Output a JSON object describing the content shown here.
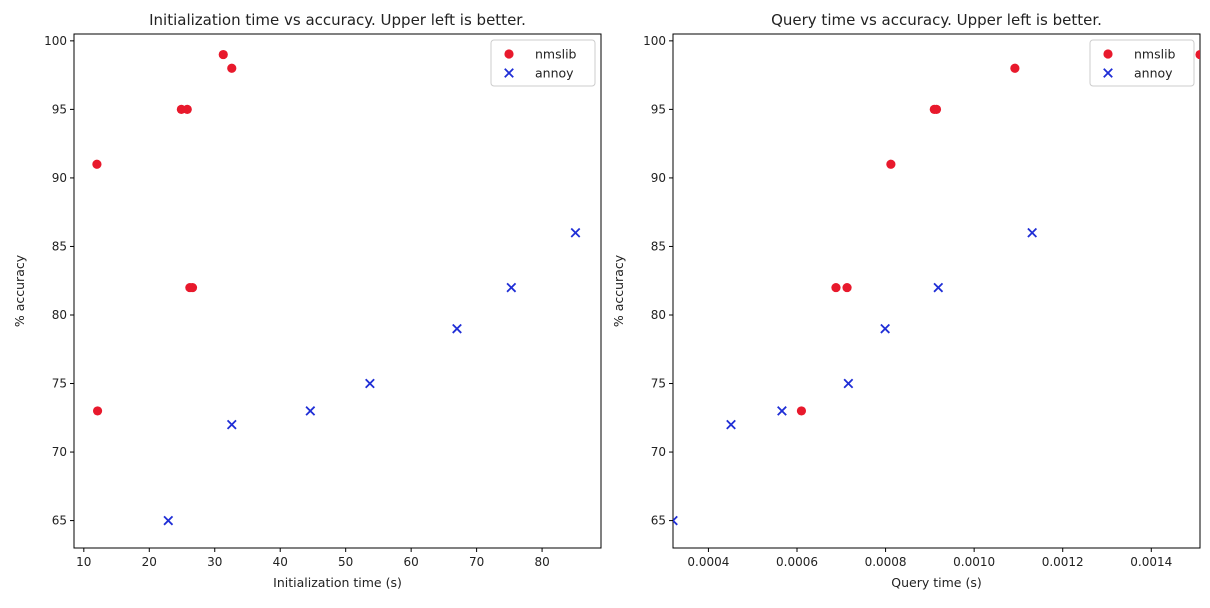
{
  "chart_data": [
    {
      "type": "scatter",
      "title": "Initialization time vs accuracy. Upper left is better.",
      "xlabel": "Initialization time (s)",
      "ylabel": "% accuracy",
      "xlim": [
        8.5,
        89
      ],
      "ylim": [
        63,
        100.5
      ],
      "xticks": [
        10,
        20,
        30,
        40,
        50,
        60,
        70,
        80
      ],
      "yticks": [
        65,
        70,
        75,
        80,
        85,
        90,
        95,
        100
      ],
      "xtick_labels": [
        "10",
        "20",
        "30",
        "40",
        "50",
        "60",
        "70",
        "80"
      ],
      "ytick_labels": [
        "65",
        "70",
        "75",
        "80",
        "85",
        "90",
        "95",
        "100"
      ],
      "legend": "top-right",
      "series": [
        {
          "name": "nmslib",
          "marker": "circle",
          "color": "#e8192c",
          "points": [
            [
              12.0,
              91
            ],
            [
              12.1,
              73
            ],
            [
              24.9,
              95
            ],
            [
              25.8,
              95
            ],
            [
              26.2,
              82
            ],
            [
              26.6,
              82
            ],
            [
              31.3,
              99
            ],
            [
              32.6,
              98
            ]
          ]
        },
        {
          "name": "annoy",
          "marker": "x",
          "color": "#1f2ed6",
          "points": [
            [
              22.9,
              65
            ],
            [
              32.6,
              72
            ],
            [
              44.6,
              73
            ],
            [
              53.7,
              75
            ],
            [
              67.0,
              79
            ],
            [
              75.3,
              82
            ],
            [
              85.1,
              86
            ]
          ]
        }
      ]
    },
    {
      "type": "scatter",
      "title": "Query time vs accuracy. Upper left is better.",
      "xlabel": "Query time (s)",
      "ylabel": "% accuracy",
      "xlim": [
        0.00032,
        0.00151
      ],
      "ylim": [
        63,
        100.5
      ],
      "xticks": [
        0.0004,
        0.0006,
        0.0008,
        0.001,
        0.0012,
        0.0014
      ],
      "yticks": [
        65,
        70,
        75,
        80,
        85,
        90,
        95,
        100
      ],
      "xtick_labels": [
        "0.0004",
        "0.0006",
        "0.0008",
        "0.0010",
        "0.0012",
        "0.0014"
      ],
      "ytick_labels": [
        "65",
        "70",
        "75",
        "80",
        "85",
        "90",
        "95",
        "100"
      ],
      "legend": "top-right",
      "series": [
        {
          "name": "nmslib",
          "marker": "circle",
          "color": "#e8192c",
          "points": [
            [
              0.00061,
              73
            ],
            [
              0.000688,
              82
            ],
            [
              0.000713,
              82
            ],
            [
              0.000812,
              91
            ],
            [
              0.00091,
              95
            ],
            [
              0.000915,
              95
            ],
            [
              0.001092,
              98
            ],
            [
              0.00151,
              99
            ]
          ]
        },
        {
          "name": "annoy",
          "marker": "x",
          "color": "#1f2ed6",
          "points": [
            [
              0.00032,
              65
            ],
            [
              0.000451,
              72
            ],
            [
              0.000566,
              73
            ],
            [
              0.000716,
              75
            ],
            [
              0.000799,
              79
            ],
            [
              0.000919,
              82
            ],
            [
              0.001131,
              86
            ]
          ]
        }
      ]
    }
  ]
}
